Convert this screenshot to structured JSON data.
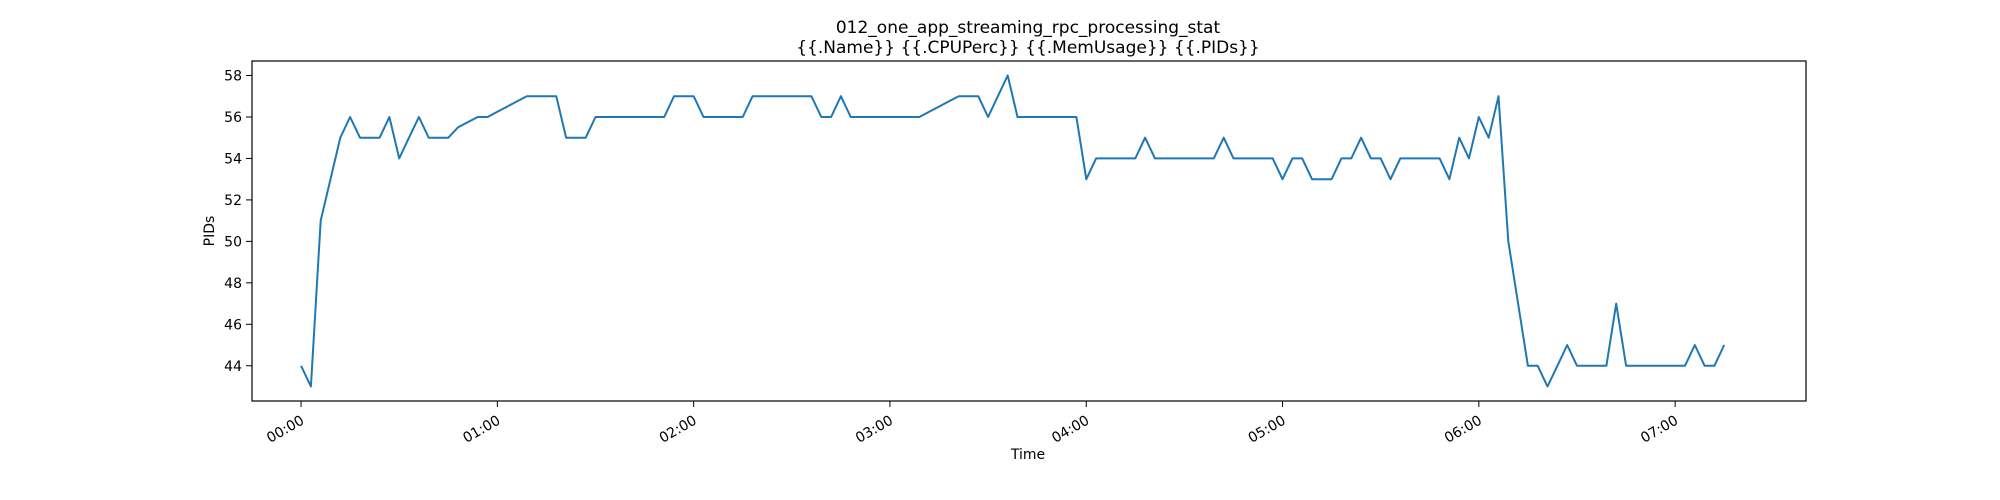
{
  "chart_data": {
    "type": "line",
    "title": "012_one_app_streaming_rpc_processing_stat",
    "subtitle": "{{.Name}} {{.CPUPerc}} {{.MemUsage}}  {{.PIDs}}",
    "xlabel": "Time",
    "ylabel": "PIDs",
    "x_unit": "minutes",
    "xlim": [
      -15,
      460
    ],
    "ylim": [
      42.3,
      58.7
    ],
    "x_ticks": [
      {
        "value": 0,
        "label": "00:00"
      },
      {
        "value": 60,
        "label": "01:00"
      },
      {
        "value": 120,
        "label": "02:00"
      },
      {
        "value": 180,
        "label": "03:00"
      },
      {
        "value": 240,
        "label": "04:00"
      },
      {
        "value": 300,
        "label": "05:00"
      },
      {
        "value": 360,
        "label": "06:00"
      },
      {
        "value": 420,
        "label": "07:00"
      }
    ],
    "y_ticks": [
      44,
      46,
      48,
      50,
      52,
      54,
      56,
      58
    ],
    "grid": false,
    "color": "#1f77b4",
    "series": [
      {
        "points": [
          [
            0,
            44
          ],
          [
            3,
            43
          ],
          [
            6,
            51
          ],
          [
            9,
            53
          ],
          [
            12,
            55
          ],
          [
            15,
            56
          ],
          [
            18,
            55
          ],
          [
            21,
            55
          ],
          [
            24,
            55
          ],
          [
            27,
            56
          ],
          [
            30,
            54
          ],
          [
            33,
            55
          ],
          [
            36,
            56
          ],
          [
            39,
            55
          ],
          [
            42,
            55
          ],
          [
            45,
            55
          ],
          [
            48,
            55.5
          ],
          [
            54,
            56
          ],
          [
            57,
            56
          ],
          [
            60,
            56.25
          ],
          [
            63,
            56.5
          ],
          [
            66,
            56.75
          ],
          [
            69,
            57
          ],
          [
            75,
            57
          ],
          [
            78,
            57
          ],
          [
            81,
            55
          ],
          [
            84,
            55
          ],
          [
            87,
            55
          ],
          [
            90,
            56
          ],
          [
            93,
            56
          ],
          [
            96,
            56
          ],
          [
            105,
            56
          ],
          [
            108,
            56
          ],
          [
            111,
            56
          ],
          [
            114,
            57
          ],
          [
            120,
            57
          ],
          [
            123,
            56
          ],
          [
            126,
            56
          ],
          [
            132,
            56
          ],
          [
            135,
            56
          ],
          [
            138,
            57
          ],
          [
            144,
            57
          ],
          [
            150,
            57
          ],
          [
            153,
            57
          ],
          [
            156,
            57
          ],
          [
            159,
            56
          ],
          [
            162,
            56
          ],
          [
            165,
            57
          ],
          [
            168,
            56
          ],
          [
            174,
            56
          ],
          [
            180,
            56
          ],
          [
            183,
            56
          ],
          [
            186,
            56
          ],
          [
            189,
            56
          ],
          [
            192,
            56.25
          ],
          [
            195,
            56.5
          ],
          [
            198,
            56.75
          ],
          [
            201,
            57
          ],
          [
            204,
            57
          ],
          [
            207,
            57
          ],
          [
            210,
            56
          ],
          [
            213,
            57
          ],
          [
            216,
            58
          ],
          [
            219,
            56
          ],
          [
            225,
            56
          ],
          [
            231,
            56
          ],
          [
            237,
            56
          ],
          [
            240,
            53
          ],
          [
            243,
            54
          ],
          [
            246,
            54
          ],
          [
            249,
            54
          ],
          [
            252,
            54
          ],
          [
            255,
            54
          ],
          [
            258,
            55
          ],
          [
            261,
            54
          ],
          [
            267,
            54
          ],
          [
            270,
            54
          ],
          [
            276,
            54
          ],
          [
            279,
            54
          ],
          [
            282,
            55
          ],
          [
            285,
            54
          ],
          [
            291,
            54
          ],
          [
            294,
            54
          ],
          [
            297,
            54
          ],
          [
            300,
            53
          ],
          [
            303,
            54
          ],
          [
            306,
            54
          ],
          [
            309,
            53
          ],
          [
            312,
            53
          ],
          [
            315,
            53
          ],
          [
            318,
            54
          ],
          [
            321,
            54
          ],
          [
            324,
            55
          ],
          [
            327,
            54
          ],
          [
            330,
            54
          ],
          [
            333,
            53
          ],
          [
            336,
            54
          ],
          [
            342,
            54
          ],
          [
            348,
            54
          ],
          [
            351,
            53
          ],
          [
            354,
            55
          ],
          [
            357,
            54
          ],
          [
            360,
            56
          ],
          [
            363,
            55
          ],
          [
            366,
            57
          ],
          [
            369,
            50
          ],
          [
            372,
            47
          ],
          [
            375,
            44
          ],
          [
            378,
            44
          ],
          [
            381,
            43
          ],
          [
            384,
            44
          ],
          [
            387,
            45
          ],
          [
            390,
            44
          ],
          [
            393,
            44
          ],
          [
            396,
            44
          ],
          [
            399,
            44
          ],
          [
            402,
            47
          ],
          [
            405,
            44
          ],
          [
            411,
            44
          ],
          [
            417,
            44
          ],
          [
            420,
            44
          ],
          [
            423,
            44
          ],
          [
            426,
            45
          ],
          [
            429,
            44
          ],
          [
            432,
            44
          ],
          [
            435,
            45
          ]
        ]
      }
    ]
  }
}
